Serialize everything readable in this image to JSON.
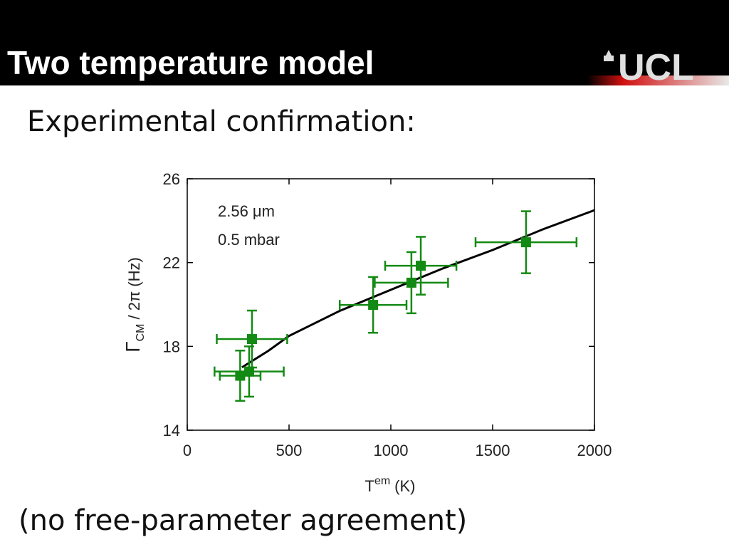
{
  "header": {
    "title": "Two temperature model",
    "logo": "UCL"
  },
  "subtitle": "Experimental confirmation:",
  "footer": "(no free-parameter agreement)",
  "chart_data": {
    "type": "scatter",
    "xlabel": "T",
    "xlabel_sup": "em",
    "xlabel_unit": "(K)",
    "ylabel": "Γ",
    "ylabel_sub": "CM",
    "ylabel_rest": "/ 2π (Hz)",
    "annotations": [
      "2.56 μm",
      "0.5 mbar"
    ],
    "xlim": [
      0,
      2000
    ],
    "xticks": [
      0,
      500,
      1000,
      1500,
      2000
    ],
    "ylim": [
      14,
      26
    ],
    "yticks": [
      14,
      18,
      22,
      26
    ],
    "points": {
      "color": "#138a13",
      "x": [
        260,
        304,
        318,
        913,
        1101,
        1147,
        1664
      ],
      "values": [
        16.6,
        16.8,
        18.35,
        19.98,
        21.04,
        21.85,
        22.97
      ],
      "xerr": [
        100,
        170,
        173,
        164,
        180,
        175,
        248
      ],
      "yerr": [
        1.2,
        1.2,
        1.36,
        1.33,
        1.46,
        1.38,
        1.48
      ]
    },
    "fit": {
      "color": "#000000",
      "x": [
        269,
        400,
        500,
        750,
        1000,
        1250,
        1500,
        1750,
        2000
      ],
      "values": [
        17.0,
        17.8,
        18.5,
        19.7,
        20.7,
        21.7,
        22.6,
        23.6,
        24.5
      ]
    }
  }
}
